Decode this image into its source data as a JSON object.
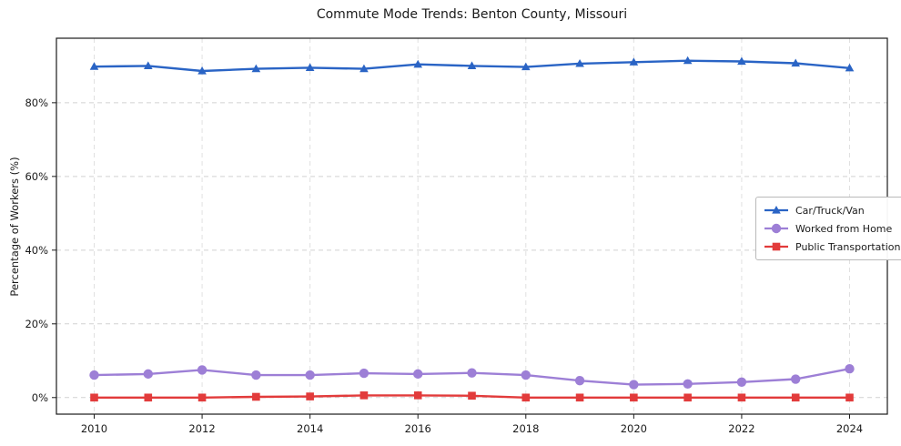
{
  "chart_data": {
    "type": "line",
    "title": "Commute Mode Trends: Benton County, Missouri",
    "xlabel": "",
    "ylabel": "Percentage of Workers (%)",
    "x": [
      2010,
      2011,
      2012,
      2013,
      2014,
      2015,
      2016,
      2017,
      2018,
      2019,
      2020,
      2021,
      2022,
      2023,
      2024
    ],
    "series": [
      {
        "name": "Car/Truck/Van",
        "color": "#2a64c5",
        "marker": "triangle",
        "values": [
          89.8,
          90.0,
          88.6,
          89.2,
          89.5,
          89.2,
          90.4,
          90.0,
          89.7,
          90.6,
          91.0,
          91.4,
          91.2,
          90.7,
          89.4
        ]
      },
      {
        "name": "Worked from Home",
        "color": "#9d7fd6",
        "marker": "circle",
        "values": [
          6.1,
          6.4,
          7.5,
          6.1,
          6.1,
          6.6,
          6.4,
          6.7,
          6.1,
          4.6,
          3.5,
          3.7,
          4.2,
          5.0,
          7.8
        ]
      },
      {
        "name": "Public Transportation",
        "color": "#e23b3b",
        "marker": "square",
        "values": [
          0.0,
          0.0,
          0.0,
          0.2,
          0.3,
          0.6,
          0.6,
          0.5,
          0.0,
          0.0,
          0.0,
          0.0,
          0.0,
          0.0,
          0.0
        ]
      }
    ],
    "xticks": [
      2010,
      2012,
      2014,
      2016,
      2018,
      2020,
      2022,
      2024
    ],
    "yticks": [
      0,
      20,
      40,
      60,
      80
    ],
    "ytick_suffix": "%",
    "xlim": [
      2009.3,
      2024.7
    ],
    "ylim": [
      -4.5,
      97.5
    ],
    "grid": true,
    "legend_position": "right-middle"
  }
}
